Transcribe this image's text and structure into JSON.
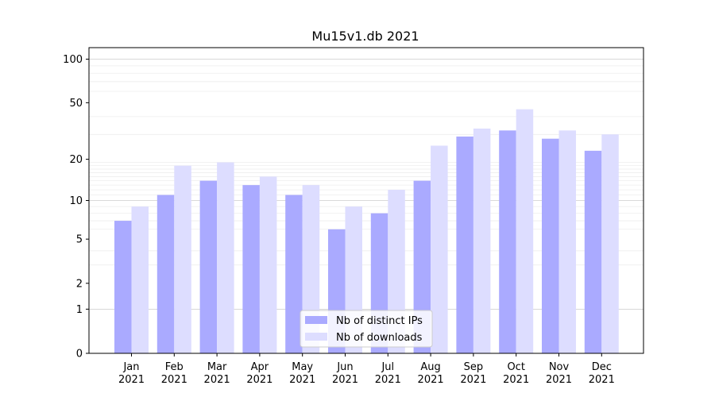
{
  "chart_data": {
    "type": "bar",
    "title": "Mu15v1.db 2021",
    "xlabel": "",
    "ylabel": "",
    "yscale": "log(1+y)",
    "ylim": [
      0,
      120
    ],
    "yticks": [
      0,
      1,
      2,
      5,
      10,
      20,
      50,
      100
    ],
    "categories": [
      "Jan\n2021",
      "Feb\n2021",
      "Mar\n2021",
      "Apr\n2021",
      "May\n2021",
      "Jun\n2021",
      "Jul\n2021",
      "Aug\n2021",
      "Sep\n2021",
      "Oct\n2021",
      "Nov\n2021",
      "Dec\n2021"
    ],
    "series": [
      {
        "name": "Nb of distinct IPs",
        "color": "#aaaaff",
        "values": [
          7,
          11,
          14,
          13,
          11,
          6,
          8,
          14,
          29,
          32,
          28,
          23
        ]
      },
      {
        "name": "Nb of downloads",
        "color": "#ddddff",
        "values": [
          9,
          18,
          19,
          15,
          13,
          9,
          12,
          25,
          33,
          45,
          32,
          30
        ]
      }
    ],
    "grid": true,
    "legend_position": "lower-center"
  }
}
